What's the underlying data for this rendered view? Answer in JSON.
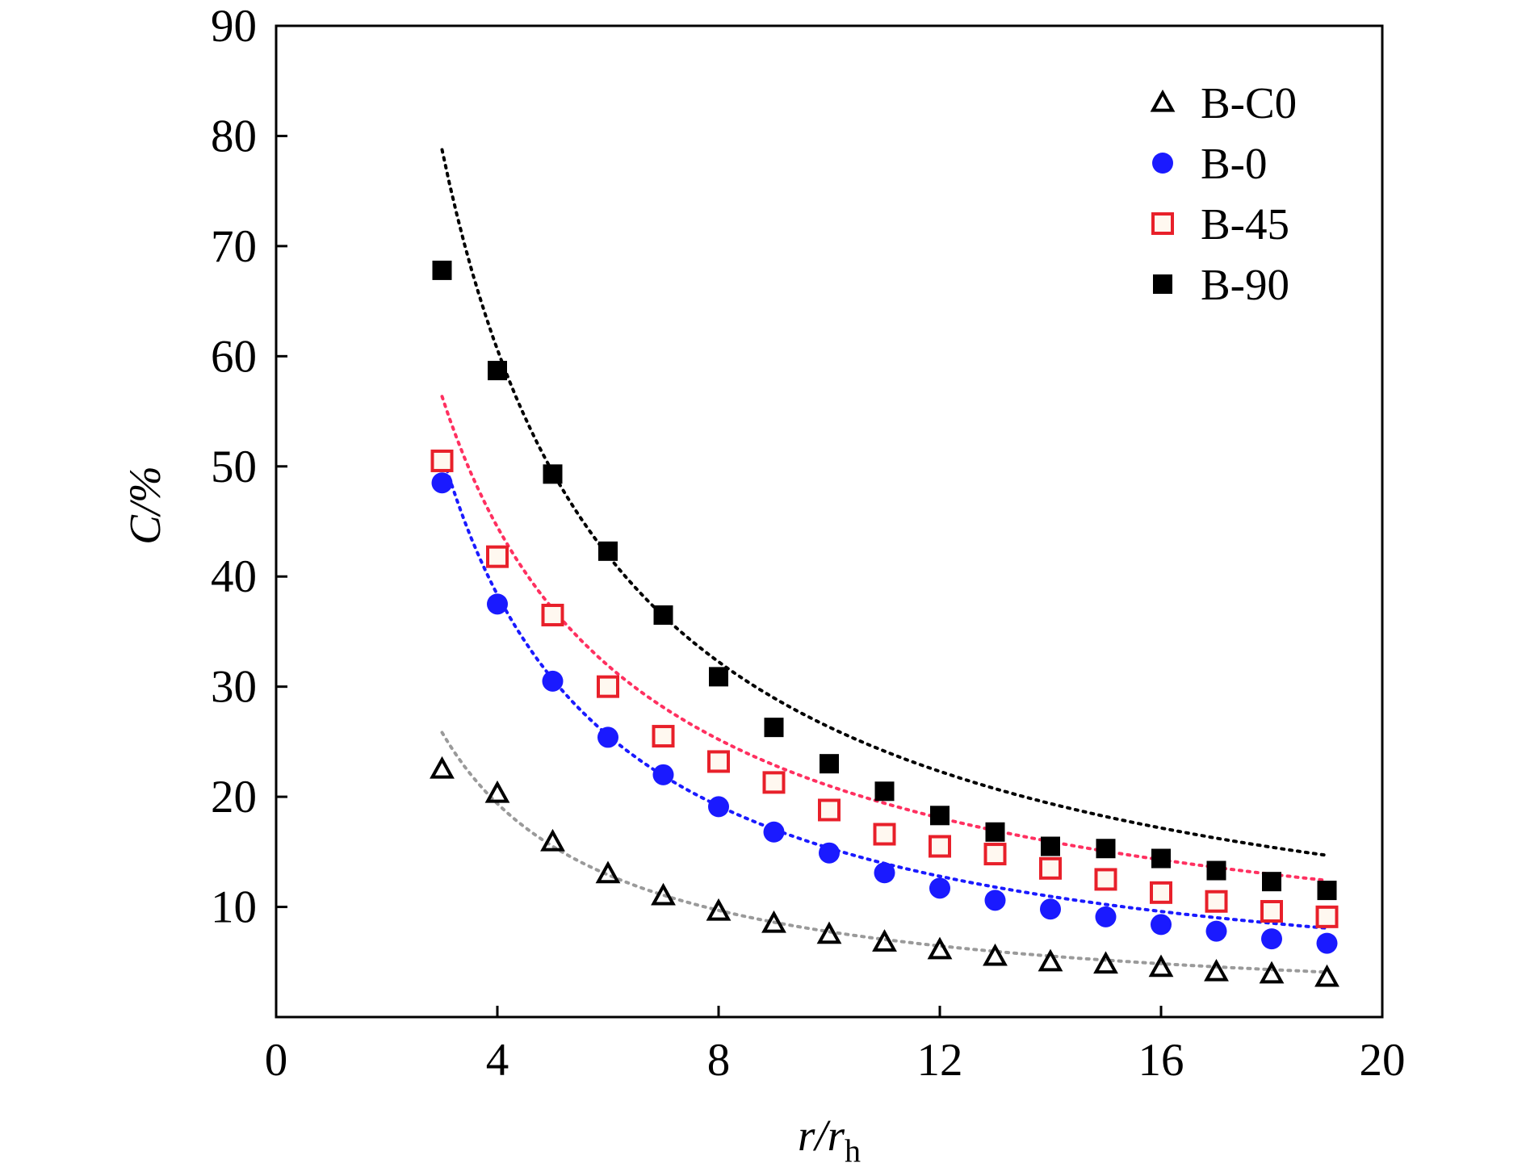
{
  "chart_data": {
    "type": "scatter",
    "title": "",
    "xlabel": {
      "main": "r/r",
      "sub": "h"
    },
    "ylabel": "C/%",
    "xlim": [
      0,
      20
    ],
    "ylim": [
      0,
      90
    ],
    "xticks": [
      "0",
      "4",
      "8",
      "12",
      "16",
      "20"
    ],
    "yticks": [
      "10",
      "20",
      "30",
      "40",
      "50",
      "60",
      "70",
      "80",
      "90"
    ],
    "grid": false,
    "legend_position": "top-right",
    "series": [
      {
        "name": "B-C0",
        "marker": "triangle-open",
        "color": "#000000",
        "fit_color": "#9a9a9a",
        "x": [
          3,
          4,
          5,
          6,
          7,
          8,
          9,
          10,
          11,
          12,
          13,
          14,
          15,
          16,
          17,
          18,
          19
        ],
        "y": [
          22.5,
          20.3,
          15.9,
          13.0,
          11.0,
          9.6,
          8.5,
          7.5,
          6.8,
          6.1,
          5.5,
          5.0,
          4.8,
          4.5,
          4.1,
          3.9,
          3.6
        ],
        "fit": {
          "a": 77.5,
          "b": 1.0
        }
      },
      {
        "name": "B-0",
        "marker": "circle-filled",
        "color": "#1a1aff",
        "fit_color": "#1a1aff",
        "x": [
          3,
          4,
          5,
          6,
          7,
          8,
          9,
          10,
          11,
          12,
          13,
          14,
          15,
          16,
          17,
          18,
          19
        ],
        "y": [
          48.5,
          37.5,
          30.5,
          25.4,
          22.0,
          19.1,
          16.8,
          14.9,
          13.1,
          11.7,
          10.6,
          9.8,
          9.1,
          8.4,
          7.8,
          7.1,
          6.7
        ],
        "fit": {
          "a": 153.4,
          "b": 1.0
        }
      },
      {
        "name": "B-45",
        "marker": "square-open",
        "color": "#e8202a",
        "fit_color": "#ff3060",
        "x": [
          3,
          4,
          5,
          6,
          7,
          8,
          9,
          10,
          11,
          12,
          13,
          14,
          15,
          16,
          17,
          18,
          19
        ],
        "y": [
          50.5,
          41.8,
          36.5,
          30.0,
          25.5,
          23.2,
          21.3,
          18.8,
          16.6,
          15.5,
          14.8,
          13.5,
          12.5,
          11.3,
          10.5,
          9.6,
          9.1
        ],
        "fit": {
          "a": 138.7,
          "b": 0.82
        }
      },
      {
        "name": "B-90",
        "marker": "square-filled",
        "color": "#000000",
        "fit_color": "#000000",
        "x": [
          3,
          4,
          5,
          6,
          7,
          8,
          9,
          10,
          11,
          12,
          13,
          14,
          15,
          16,
          17,
          18,
          19
        ],
        "y": [
          67.8,
          58.7,
          49.3,
          42.3,
          36.5,
          30.9,
          26.3,
          23.0,
          20.5,
          18.3,
          16.8,
          15.5,
          15.3,
          14.4,
          13.3,
          12.3,
          11.5
        ],
        "fit": {
          "a": 214.0,
          "b": 0.91
        }
      }
    ]
  }
}
